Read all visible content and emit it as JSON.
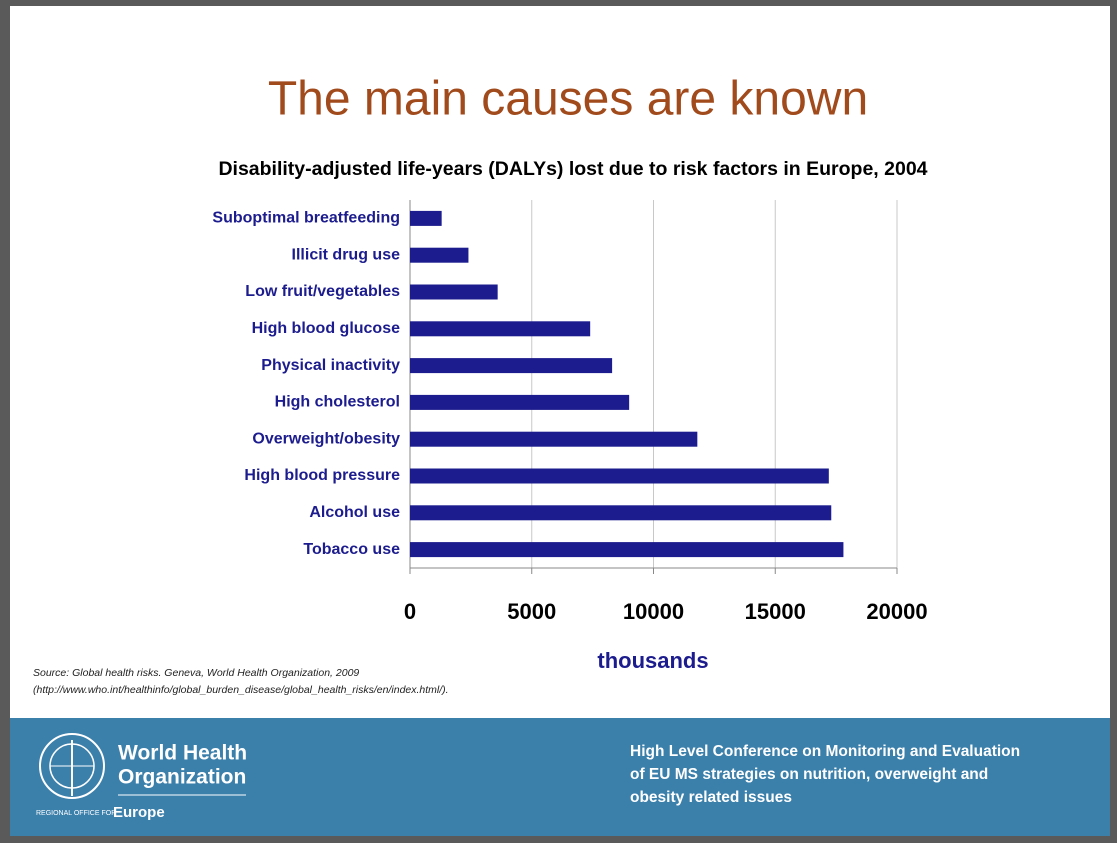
{
  "slide_title": "The main causes are known",
  "chart_data": {
    "type": "bar",
    "orientation": "horizontal",
    "title": "Disability-adjusted life-years (DALYs) lost due to risk factors in Europe, 2004",
    "categories": [
      "Suboptimal breatfeeding",
      "Illicit drug use",
      "Low fruit/vegetables",
      "High blood glucose",
      "Physical inactivity",
      "High cholesterol",
      "Overweight/obesity",
      "High blood pressure",
      "Alcohol use",
      "Tobacco use"
    ],
    "values": [
      1300,
      2400,
      3600,
      7400,
      8300,
      9000,
      11800,
      17200,
      17300,
      17800
    ],
    "color": "#1c1c8e",
    "x_label": "thousands",
    "xlim": [
      0,
      20000
    ],
    "xticks": [
      0,
      5000,
      10000,
      15000,
      20000
    ],
    "grid": true
  },
  "source": [
    "Source: Global health risks. Geneva, World Health Organization, 2009",
    "(http://www.who.int/healthinfo/global_burden_disease/global_health_risks/en/index.html/)."
  ],
  "footer": {
    "org": [
      "World Health",
      "Organization"
    ],
    "office": "REGIONAL OFFICE FOR",
    "region": "Europe",
    "conference": [
      "High Level Conference on Monitoring and Evaluation",
      "of EU MS strategies on nutrition, overweight and",
      "obesity related issues"
    ]
  }
}
